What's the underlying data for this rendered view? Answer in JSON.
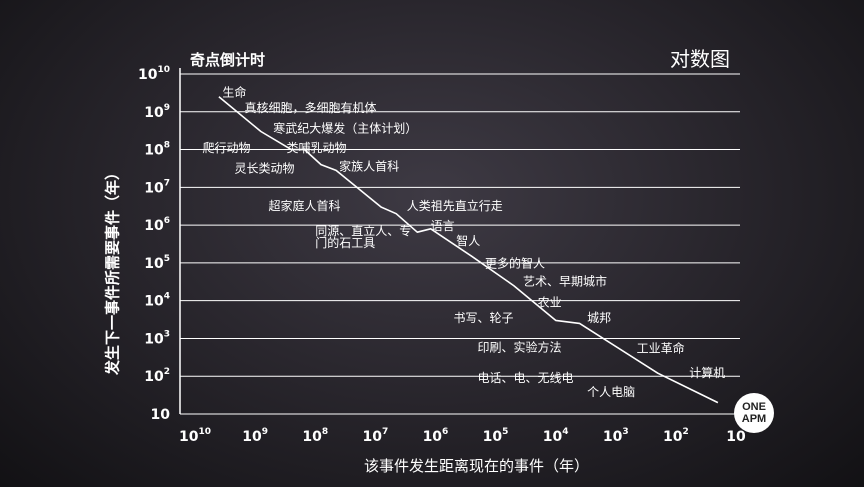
{
  "chart_data": {
    "type": "line",
    "title_left": "奇点倒计时",
    "title_right": "对数图",
    "xlabel": "该事件发生距离现在的事件（年）",
    "ylabel": "发生下一事件所需要事件（年）",
    "x_scale": "log",
    "y_scale": "log",
    "x_reversed": true,
    "xlim": [
      10000000000,
      10
    ],
    "ylim": [
      10,
      10000000000
    ],
    "grid": "horizontal",
    "x_ticks": [
      {
        "base": "10",
        "exp": "10"
      },
      {
        "base": "10",
        "exp": "9"
      },
      {
        "base": "10",
        "exp": "8"
      },
      {
        "base": "10",
        "exp": "7"
      },
      {
        "base": "10",
        "exp": "6"
      },
      {
        "base": "10",
        "exp": "5"
      },
      {
        "base": "10",
        "exp": "4"
      },
      {
        "base": "10",
        "exp": "3"
      },
      {
        "base": "10",
        "exp": "2"
      },
      {
        "base": "10",
        "exp": ""
      }
    ],
    "y_ticks": [
      {
        "base": "10",
        "exp": "10"
      },
      {
        "base": "10",
        "exp": "9"
      },
      {
        "base": "10",
        "exp": "8"
      },
      {
        "base": "10",
        "exp": "7"
      },
      {
        "base": "10",
        "exp": "6"
      },
      {
        "base": "10",
        "exp": "5"
      },
      {
        "base": "10",
        "exp": "4"
      },
      {
        "base": "10",
        "exp": "3"
      },
      {
        "base": "10",
        "exp": "2"
      },
      {
        "base": "10",
        "exp": ""
      }
    ],
    "series": [
      {
        "points": [
          {
            "x": 4000000000,
            "y": 2500000000
          },
          {
            "x": 800000000,
            "y": 300000000
          },
          {
            "x": 250000000,
            "y": 100000000
          },
          {
            "x": 150000000,
            "y": 100000000
          },
          {
            "x": 80000000,
            "y": 40000000
          },
          {
            "x": 45000000,
            "y": 28000000
          },
          {
            "x": 8000000,
            "y": 3000000
          },
          {
            "x": 4500000,
            "y": 2000000
          },
          {
            "x": 2000000,
            "y": 650000
          },
          {
            "x": 1200000,
            "y": 800000
          },
          {
            "x": 250000,
            "y": 150000
          },
          {
            "x": 50000,
            "y": 25000
          },
          {
            "x": 10000,
            "y": 3000
          },
          {
            "x": 4000,
            "y": 2500
          },
          {
            "x": 200,
            "y": 120
          },
          {
            "x": 20,
            "y": 20
          }
        ]
      }
    ],
    "annotations": [
      {
        "text": "生命",
        "x": 3500000000,
        "y": 2500000000
      },
      {
        "text": "真核细胞，多细胞有机体",
        "x": 1500000000,
        "y": 1000000000
      },
      {
        "text": "寒武纪大爆发（主体计划）",
        "x": 500000000,
        "y": 280000000
      },
      {
        "text": "爬行动物",
        "x": 7500000000,
        "y": 85000000
      },
      {
        "text": "类哺乳动物",
        "x": 300000000,
        "y": 85000000
      },
      {
        "text": "家族人首科",
        "x": 40000000,
        "y": 28000000
      },
      {
        "text": "灵长类动物",
        "x": 2200000000,
        "y": 25000000
      },
      {
        "text": "人类祖先直立行走",
        "x": 3000000,
        "y": 2500000
      },
      {
        "text": "超家庭人首科",
        "x": 600000000,
        "y": 2500000
      },
      {
        "text": "语言",
        "x": 1200000,
        "y": 750000
      },
      {
        "text": "同源、直立人、专",
        "x": 100000000,
        "y": 550000
      },
      {
        "text": "门的石工具",
        "x": 100000000,
        "y": 260000
      },
      {
        "text": "智人",
        "x": 450000,
        "y": 300000
      },
      {
        "text": "更多的智人",
        "x": 150000,
        "y": 75000
      },
      {
        "text": "艺术、早期城市",
        "x": 35000,
        "y": 25000
      },
      {
        "text": "农业",
        "x": 20000,
        "y": 7000
      },
      {
        "text": "书写、轮子",
        "x": 500000,
        "y": 2700
      },
      {
        "text": "城邦",
        "x": 3000,
        "y": 2700
      },
      {
        "text": "印刷、实验方法",
        "x": 200000,
        "y": 450
      },
      {
        "text": "工业革命",
        "x": 450,
        "y": 420
      },
      {
        "text": "电话、电、无线电",
        "x": 200000,
        "y": 70
      },
      {
        "text": "计算机",
        "x": 60,
        "y": 95
      },
      {
        "text": "个人电脑",
        "x": 3000,
        "y": 30
      }
    ]
  },
  "logo": {
    "line1": "ONE",
    "line2": "APM"
  }
}
